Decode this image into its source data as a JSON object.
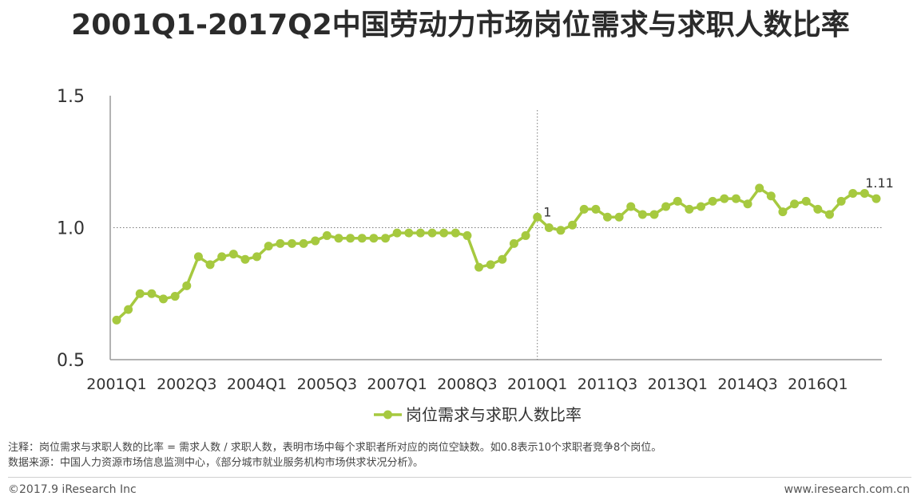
{
  "title": "2001Q1-2017Q2中国劳动力市场岗位需求与求职人数比率",
  "chart_data": {
    "type": "line",
    "title": "2001Q1-2017Q2中国劳动力市场岗位需求与求职人数比率",
    "x_tick_labels": [
      "2001Q1",
      "2002Q3",
      "2004Q1",
      "2005Q3",
      "2007Q1",
      "2008Q3",
      "2010Q1",
      "2011Q3",
      "2013Q1",
      "2014Q3",
      "2016Q1"
    ],
    "y_tick_labels": [
      "0.5",
      "1.0",
      "1.5"
    ],
    "ylim": [
      0.5,
      1.5
    ],
    "grid": false,
    "reference_line_y": 1.0,
    "reference_line_x": "2010Q1",
    "legend_position": "bottom",
    "series": [
      {
        "name": "岗位需求与求职人数比率",
        "color": "#a6c93f",
        "x": [
          "2001Q1",
          "2001Q2",
          "2001Q3",
          "2001Q4",
          "2002Q1",
          "2002Q2",
          "2002Q3",
          "2002Q4",
          "2003Q1",
          "2003Q2",
          "2003Q3",
          "2003Q4",
          "2004Q1",
          "2004Q2",
          "2004Q3",
          "2004Q4",
          "2005Q1",
          "2005Q2",
          "2005Q3",
          "2005Q4",
          "2006Q1",
          "2006Q2",
          "2006Q3",
          "2006Q4",
          "2007Q1",
          "2007Q2",
          "2007Q3",
          "2007Q4",
          "2008Q1",
          "2008Q2",
          "2008Q3",
          "2008Q4",
          "2009Q1",
          "2009Q2",
          "2009Q3",
          "2009Q4",
          "2010Q1",
          "2010Q2",
          "2010Q3",
          "2010Q4",
          "2011Q1",
          "2011Q2",
          "2011Q3",
          "2011Q4",
          "2012Q1",
          "2012Q2",
          "2012Q3",
          "2012Q4",
          "2013Q1",
          "2013Q2",
          "2013Q3",
          "2013Q4",
          "2014Q1",
          "2014Q2",
          "2014Q3",
          "2014Q4",
          "2015Q1",
          "2015Q2",
          "2015Q3",
          "2015Q4",
          "2016Q1",
          "2016Q2",
          "2016Q3",
          "2016Q4",
          "2017Q1",
          "2017Q2"
        ],
        "values": [
          0.65,
          0.69,
          0.75,
          0.75,
          0.73,
          0.74,
          0.78,
          0.89,
          0.86,
          0.89,
          0.9,
          0.88,
          0.89,
          0.93,
          0.94,
          0.94,
          0.94,
          0.95,
          0.97,
          0.96,
          0.96,
          0.96,
          0.96,
          0.96,
          0.98,
          0.98,
          0.98,
          0.98,
          0.98,
          0.98,
          0.97,
          0.85,
          0.86,
          0.88,
          0.94,
          0.97,
          1.04,
          1.0,
          0.99,
          1.01,
          1.07,
          1.07,
          1.04,
          1.04,
          1.08,
          1.05,
          1.05,
          1.08,
          1.1,
          1.07,
          1.08,
          1.1,
          1.11,
          1.11,
          1.09,
          1.15,
          1.12,
          1.06,
          1.09,
          1.1,
          1.07,
          1.05,
          1.1,
          1.13,
          1.13,
          1.11
        ]
      }
    ],
    "data_labels": [
      {
        "x": "2010Q2",
        "text": "1"
      },
      {
        "x": "2017Q2",
        "text": "1.11"
      }
    ]
  },
  "notes": {
    "note1": "注释：岗位需求与求职人数的比率 = 需求人数 / 求职人数，表明市场中每个求职者所对应的岗位空缺数。如0.8表示10个求职者竞争8个岗位。",
    "note2": "数据来源：中国人力资源市场信息监测中心，《部分城市就业服务机构市场供求状况分析》。"
  },
  "footer": {
    "copyright": "©2017.9 iResearch Inc",
    "website": "www.iresearch.com.cn"
  }
}
